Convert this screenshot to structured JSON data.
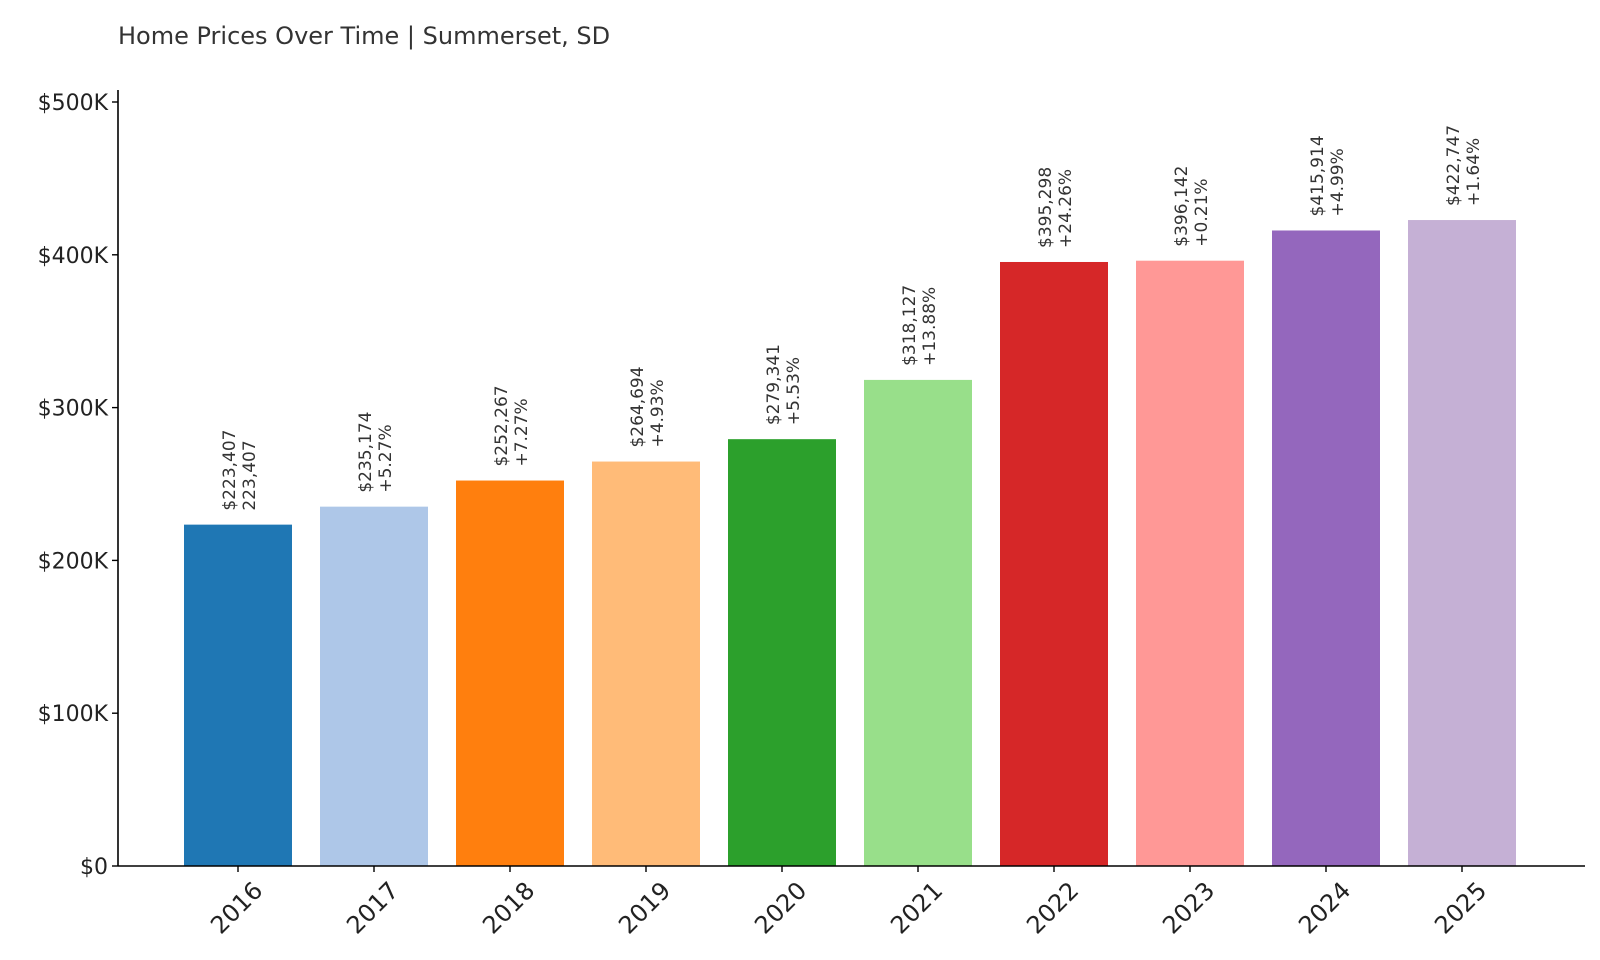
{
  "chart_data": {
    "type": "bar",
    "title": "Home Prices Over Time | Summerset, SD",
    "xlabel": "",
    "ylabel": "",
    "ylim": [
      0,
      500000
    ],
    "y_ticks": [
      {
        "value": 0,
        "label": "$0"
      },
      {
        "value": 100000,
        "label": "$100K"
      },
      {
        "value": 200000,
        "label": "$200K"
      },
      {
        "value": 300000,
        "label": "$300K"
      },
      {
        "value": 400000,
        "label": "$400K"
      },
      {
        "value": 500000,
        "label": "$500K"
      }
    ],
    "categories": [
      "2016",
      "2017",
      "2018",
      "2019",
      "2020",
      "2021",
      "2022",
      "2023",
      "2024",
      "2025"
    ],
    "values": [
      223407,
      235174,
      252267,
      264694,
      279341,
      318127,
      395298,
      396142,
      415914,
      422747
    ],
    "value_labels": [
      "$223,407",
      "$235,174",
      "$252,267",
      "$264,694",
      "$279,341",
      "$318,127",
      "$395,298",
      "$396,142",
      "$415,914",
      "$422,747"
    ],
    "change_labels": [
      "223,407",
      "+5.27%",
      "+7.27%",
      "+4.93%",
      "+5.53%",
      "+13.88%",
      "+24.26%",
      "+0.21%",
      "+4.99%",
      "+1.64%"
    ],
    "colors": [
      "#1f77b4",
      "#aec7e8",
      "#ff7f0e",
      "#ffbb78",
      "#2ca02c",
      "#98df8a",
      "#d62728",
      "#ff9896",
      "#9467bd",
      "#c5b0d5"
    ],
    "grid": false,
    "legend": "none"
  }
}
